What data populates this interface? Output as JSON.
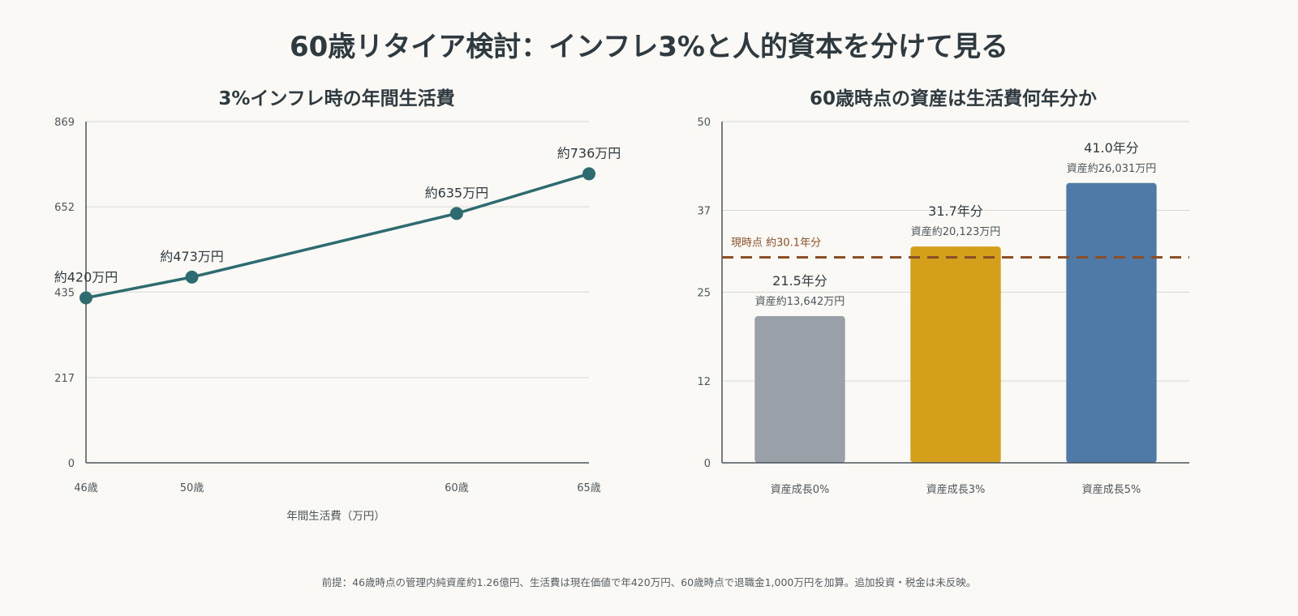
{
  "title": "60歳リタイア検討：インフレ3%と人的資本を分けて見る",
  "footnote": "前提：46歳時点の管理内純資産約1.26億円、生活費は現在価値で年420万円、60歳時点で退職金1,000万円を加算。追加投資・税金は未反映。",
  "chart_data": [
    {
      "type": "line",
      "title": "3%インフレ時の年間生活費",
      "xlabel": "年間生活費（万円）",
      "ylabel": "",
      "x": [
        46,
        50,
        60,
        65
      ],
      "x_tick_labels": [
        "46歳",
        "50歳",
        "60歳",
        "65歳"
      ],
      "values": [
        420,
        473,
        635,
        736
      ],
      "data_labels": [
        "約420万円",
        "約473万円",
        "約635万円",
        "約736万円"
      ],
      "xlim": [
        46,
        65
      ],
      "ylim": [
        0,
        869
      ],
      "y_ticks": [
        "0",
        "217",
        "435",
        "652",
        "869"
      ],
      "color": "#2e6b70",
      "grid": true
    },
    {
      "type": "bar",
      "title": "60歳時点の資産は生活費何年分か",
      "categories": [
        "資産成長0%",
        "資産成長3%",
        "資産成長5%"
      ],
      "values": [
        21.5,
        31.7,
        41.0
      ],
      "value_labels": [
        "21.5年分",
        "31.7年分",
        "41.0年分"
      ],
      "sub_labels": [
        "資産約13,642万円",
        "資産約20,123万円",
        "資産約26,031万円"
      ],
      "colors": [
        "#9aa0a8",
        "#d4a01c",
        "#4f7aa8"
      ],
      "ylim": [
        0,
        50
      ],
      "y_ticks": [
        "0",
        "12",
        "25",
        "37",
        "50"
      ],
      "reference_line": {
        "value": 30.1,
        "label": "現時点 約30.1年分",
        "color": "#8a4f26"
      },
      "grid": true
    }
  ]
}
